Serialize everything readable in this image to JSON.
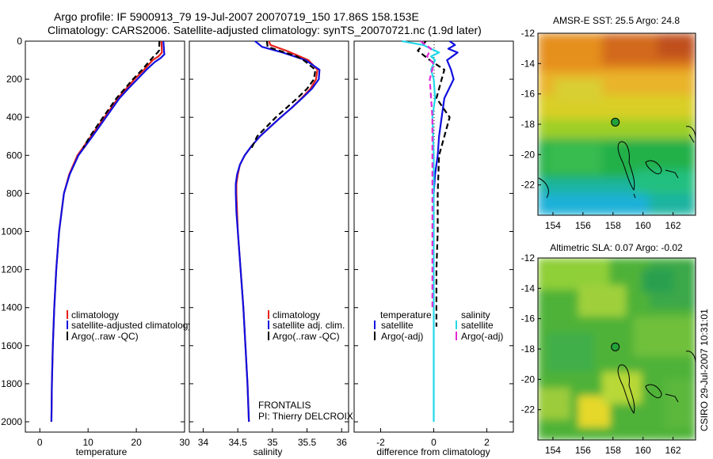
{
  "header": {
    "line1": "Argo profile: IF 5900913_79 19-Jul-2007 20070719_150 17.86S 158.153E",
    "line2": "Climatology: CARS2006. Satellite-adjusted climatology: synTS_20070721.nc (1.9d later)"
  },
  "colors": {
    "climatology": "#e8201a",
    "satellite": "#1010e0",
    "argo": "#000000",
    "salinity_diff": "#22d8e8",
    "salinity_argo_diff": "#e02ad8"
  },
  "chart_data": [
    {
      "type": "line",
      "id": "temperature_profile",
      "xlabel": "temperature",
      "ylabel": "",
      "xlim": [
        -3,
        30
      ],
      "ylim": [
        0,
        2080
      ],
      "y_inverted": true,
      "xticks": [
        0,
        10,
        20,
        30
      ],
      "yticks": [
        0,
        200,
        400,
        600,
        800,
        1000,
        1200,
        1400,
        1600,
        1800,
        2000
      ],
      "series": [
        {
          "name": "climatology",
          "style": "solid",
          "color_key": "climatology",
          "depth": [
            0,
            60,
            80,
            100,
            150,
            200,
            250,
            300,
            400,
            500,
            600,
            700,
            800,
            1000,
            1200,
            1400,
            1600,
            1800,
            2000
          ],
          "values": [
            25.2,
            25.3,
            24.6,
            23.4,
            21.6,
            19.6,
            17.9,
            16.2,
            13.4,
            10.6,
            7.8,
            6.1,
            5.0,
            4.0,
            3.4,
            3.0,
            2.7,
            2.5,
            2.4
          ]
        },
        {
          "name": "satellite-adjusted climatology",
          "style": "solid",
          "color_key": "satellite",
          "depth": [
            0,
            70,
            90,
            110,
            150,
            200,
            250,
            300,
            400,
            500,
            600,
            700,
            800,
            1000,
            1200,
            1400,
            1600,
            1800,
            2000
          ],
          "values": [
            25.6,
            25.8,
            25.0,
            23.8,
            22.1,
            20.2,
            18.3,
            16.5,
            13.7,
            10.9,
            8.0,
            6.2,
            5.0,
            4.0,
            3.4,
            3.0,
            2.7,
            2.5,
            2.4
          ]
        },
        {
          "name": "Argo(..raw -QC)",
          "style": "dash",
          "color_key": "argo",
          "depth": [
            0,
            50,
            60,
            80,
            100,
            150,
            200,
            250,
            300,
            400,
            500,
            560
          ],
          "values": [
            24.8,
            24.7,
            24.4,
            23.6,
            22.9,
            21.2,
            19.3,
            17.6,
            15.9,
            13.1,
            10.4,
            9.0
          ]
        }
      ],
      "legend": [
        "climatology",
        "satellite-adjusted climatology",
        "Argo(..raw -QC)"
      ]
    },
    {
      "type": "line",
      "id": "salinity_profile",
      "xlabel": "salinity",
      "xlim": [
        33.8,
        36.1
      ],
      "ylim": [
        0,
        2080
      ],
      "y_inverted": true,
      "xticks": [
        34,
        34.5,
        35,
        35.5,
        36
      ],
      "series": [
        {
          "name": "climatology",
          "style": "solid",
          "color_key": "climatology",
          "depth": [
            0,
            20,
            50,
            100,
            150,
            200,
            250,
            300,
            350,
            400,
            450,
            500,
            550,
            600,
            650,
            700,
            750,
            800,
            900,
            1000,
            1200,
            1400,
            1600,
            1800,
            2000
          ],
          "values": [
            34.95,
            34.97,
            35.2,
            35.52,
            35.65,
            35.63,
            35.55,
            35.42,
            35.28,
            35.12,
            34.97,
            34.82,
            34.7,
            34.6,
            34.53,
            34.5,
            34.48,
            34.48,
            34.49,
            34.5,
            34.54,
            34.58,
            34.61,
            34.64,
            34.66
          ]
        },
        {
          "name": "satellite adj. clim.",
          "style": "solid",
          "color_key": "satellite",
          "depth": [
            0,
            30,
            60,
            100,
            150,
            200,
            250,
            300,
            350,
            400,
            450,
            500,
            550,
            600,
            650,
            700,
            750,
            800,
            900,
            1000,
            1200,
            1400,
            1600,
            1800,
            2000
          ],
          "values": [
            34.75,
            34.85,
            35.15,
            35.48,
            35.68,
            35.67,
            35.57,
            35.43,
            35.28,
            35.12,
            34.97,
            34.82,
            34.7,
            34.6,
            34.53,
            34.49,
            34.47,
            34.47,
            34.48,
            34.5,
            34.54,
            34.58,
            34.61,
            34.64,
            34.66
          ]
        },
        {
          "name": "Argo(..raw -QC)",
          "style": "dash",
          "color_key": "argo",
          "depth": [
            0,
            30,
            50,
            80,
            100,
            150,
            200,
            250,
            300,
            400,
            500,
            560
          ],
          "values": [
            34.92,
            34.93,
            35.1,
            35.35,
            35.45,
            35.62,
            35.6,
            35.5,
            35.36,
            35.05,
            34.78,
            34.7
          ]
        }
      ],
      "legend": [
        "climatology",
        "satellite adj. clim.",
        "Argo(..raw -QC)"
      ],
      "annotation": [
        "FRONTALIS",
        "PI: Thierry DELCROIX"
      ]
    },
    {
      "type": "line",
      "id": "difference_profile",
      "xlabel": "difference from climatology",
      "xlim": [
        -3,
        3
      ],
      "ylim": [
        0,
        2080
      ],
      "y_inverted": true,
      "xticks": [
        -2,
        0,
        2
      ],
      "series": [
        {
          "name": "temperature satellite",
          "style": "solid",
          "color_key": "satellite",
          "depth": [
            0,
            20,
            40,
            60,
            80,
            100,
            150,
            200,
            300,
            400,
            500,
            600,
            700,
            800
          ],
          "values": [
            0.6,
            0.8,
            0.55,
            0.9,
            0.7,
            0.5,
            0.65,
            0.75,
            0.4,
            0.3,
            0.2,
            0.15,
            0.05,
            0.0
          ]
        },
        {
          "name": "temperature Argo(-adj)",
          "style": "dash",
          "color_key": "argo",
          "depth": [
            0,
            50,
            100,
            150,
            200,
            300,
            400,
            500,
            600,
            800,
            1000,
            1200,
            1500
          ],
          "values": [
            -0.3,
            -0.6,
            -0.15,
            0.4,
            0.3,
            0.1,
            0.6,
            0.4,
            0.2,
            0.15,
            0.15,
            0.1,
            0.1
          ]
        },
        {
          "name": "salinity satellite",
          "style": "solid",
          "color_key": "salinity_diff",
          "depth": [
            0,
            10,
            20,
            40,
            60,
            80,
            100,
            150,
            200,
            300,
            400,
            600,
            800,
            1000,
            1500,
            2000
          ],
          "values": [
            -1.2,
            -0.8,
            -0.4,
            -0.1,
            0.2,
            -0.1,
            0.05,
            -0.1,
            0.0,
            0.05,
            -0.05,
            0.0,
            0.0,
            0.0,
            0.0,
            0.0
          ]
        },
        {
          "name": "salinity Argo(-adj)",
          "style": "dash",
          "color_key": "salinity_argo_diff",
          "depth": [
            0,
            40,
            80,
            120,
            200,
            400,
            600,
            800,
            1000,
            1200,
            1400
          ],
          "values": [
            -0.5,
            -0.1,
            -0.25,
            0.0,
            -0.15,
            -0.05,
            -0.05,
            -0.05,
            -0.05,
            -0.05,
            -0.05
          ]
        }
      ],
      "legend_headers": [
        "temperature",
        "salinity"
      ],
      "legend": [
        "satellite",
        "Argo(-adj)",
        "satellite",
        "Argo(-adj)"
      ]
    },
    {
      "type": "heatmap",
      "id": "sst_map",
      "title": "AMSR-E SST: 25.5 Argo: 24.8",
      "xticks": [
        154,
        156,
        158,
        160,
        162
      ],
      "yticks": [
        -12,
        -14,
        -16,
        -18,
        -20,
        -22
      ],
      "xlim": [
        153,
        163.5
      ],
      "ylim": [
        -24,
        -12
      ],
      "float_position": {
        "lon": 158.153,
        "lat": -17.86
      }
    },
    {
      "type": "heatmap",
      "id": "sla_map",
      "title": "Altimetric SLA: 0.07 Argo: -0.02",
      "xticks": [
        154,
        156,
        158,
        160,
        162
      ],
      "yticks": [
        -12,
        -14,
        -16,
        -18,
        -20,
        -22
      ],
      "xlim": [
        153,
        163.5
      ],
      "ylim": [
        -24,
        -12
      ],
      "float_position": {
        "lon": 158.153,
        "lat": -17.86
      }
    }
  ],
  "side_label": "CSIRO 29-Jul-2007 10:31:01"
}
